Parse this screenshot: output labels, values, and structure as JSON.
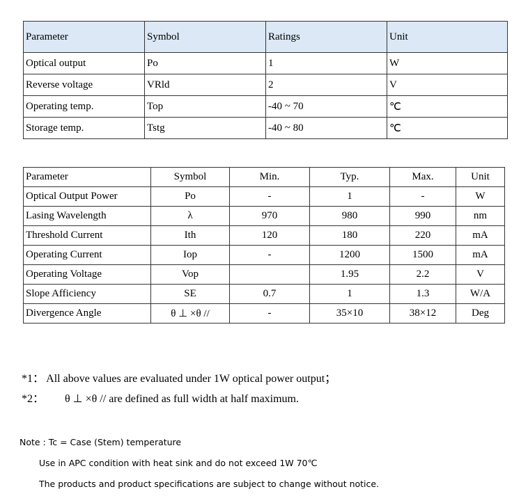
{
  "ratings_table": {
    "headers": [
      "Parameter",
      "Symbol",
      "Ratings",
      "Unit"
    ],
    "rows": [
      [
        "Optical output",
        "Po",
        "1",
        "W"
      ],
      [
        "Reverse voltage",
        "VRld",
        "2",
        "V"
      ],
      [
        "Operating temp.",
        "Top",
        "-40 ~ 70",
        "℃"
      ],
      [
        "Storage temp.",
        "Tstg",
        "-40 ~ 80",
        "℃"
      ]
    ]
  },
  "characteristics_table": {
    "headers": [
      "Parameter",
      "Symbol",
      "Min.",
      "Typ.",
      "Max.",
      "Unit"
    ],
    "rows": [
      [
        "Optical Output Power",
        "Po",
        "-",
        "1",
        "-",
        "W"
      ],
      [
        "Lasing Wavelength",
        "λ",
        "970",
        "980",
        "990",
        "nm"
      ],
      [
        "Threshold Current",
        "Ith",
        "120",
        "180",
        "220",
        "mA"
      ],
      [
        "Operating Current",
        "Iop",
        "-",
        "1200",
        "1500",
        "mA"
      ],
      [
        "Operating Voltage",
        "Vop",
        "",
        "1.95",
        "2.2",
        "V"
      ],
      [
        "Slope Afficiency",
        "SE",
        "0.7",
        "1",
        "1.3",
        "W/A"
      ],
      [
        "Divergence Angle",
        "θ ⊥ ×θ //",
        "-",
        "35×10",
        "38×12",
        "Deg"
      ]
    ]
  },
  "footnotes": [
    {
      "mark": "*1：",
      "text": "All above values are evaluated under 1W optical power output；"
    },
    {
      "mark": "*2：",
      "text": "θ ⊥ ×θ // are defined as full width at half maximum."
    }
  ],
  "notes": [
    "Note : Tc = Case (Stem) temperature",
    "Use in APC condition with heat sink and do not exceed 1W 70℃",
    "The products and product specifications are subject to change without notice."
  ]
}
